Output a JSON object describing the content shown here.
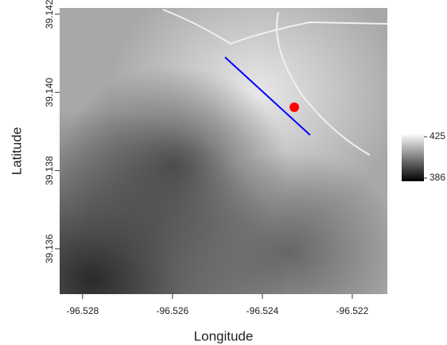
{
  "chart_data": {
    "type": "raster-map",
    "x_label": "Longitude",
    "y_label": "Latitude",
    "xlim": [
      -96.52851,
      -96.52122
    ],
    "ylim": [
      39.13484,
      39.14216
    ],
    "xticks": [
      -96.528,
      -96.526,
      -96.524,
      -96.522
    ],
    "yticks": [
      39.136,
      39.138,
      {
        "value": 39.14,
        "label": "39.140"
      },
      39.142
    ],
    "line": {
      "x": [
        -96.52483,
        -96.52294
      ],
      "y": [
        39.1409,
        39.13891
      ],
      "color": "#0000ff"
    },
    "point": {
      "x": [
        -96.52329
      ],
      "y": [
        39.13962
      ],
      "color": "#ff0000"
    },
    "colorbar": {
      "lim": [
        383,
        428
      ],
      "ticks": [
        386,
        425
      ],
      "colors": [
        "#000000",
        "#ffffff"
      ]
    }
  }
}
